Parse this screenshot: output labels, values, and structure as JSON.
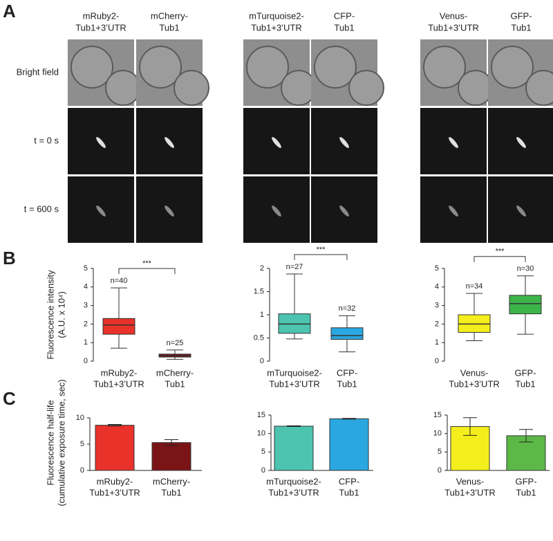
{
  "panels": [
    "A",
    "B",
    "C"
  ],
  "panel_a": {
    "columns": [
      [
        "mRuby2-",
        "Tub1+3’UTR"
      ],
      [
        "mCherry-",
        "Tub1"
      ],
      [
        "mTurquoise2-",
        "Tub1+3’UTR"
      ],
      [
        "CFP-",
        "Tub1"
      ],
      [
        "Venus-",
        "Tub1+3’UTR"
      ],
      [
        "GFP-",
        "Tub1"
      ]
    ],
    "rows": [
      "Bright field",
      "t = 0 s",
      "t = 600 s"
    ]
  },
  "ylabel_b": [
    "Fluorescence intensity",
    "(A.U. x 10⁴)"
  ],
  "ylabel_c": [
    "Fluorescence half-life",
    "(cumulative exposure time, sec)"
  ],
  "chart_data": [
    {
      "type": "box",
      "categories": [
        [
          "mRuby2-",
          "Tub1+3’UTR"
        ],
        [
          "mCherry-",
          "Tub1"
        ]
      ],
      "ylim": [
        0,
        5
      ],
      "yticks": [
        0,
        1,
        2,
        3,
        4,
        5
      ],
      "significance": "***",
      "boxes": [
        {
          "min": 0.7,
          "q1": 1.45,
          "median": 1.95,
          "q3": 2.3,
          "max": 3.95,
          "n": "n=40",
          "color": "#e8322a"
        },
        {
          "min": 0.1,
          "q1": 0.22,
          "median": 0.3,
          "q3": 0.38,
          "max": 0.6,
          "n": "n=25",
          "color": "#7b1416"
        }
      ]
    },
    {
      "type": "box",
      "categories": [
        [
          "mTurquoise2-",
          "Tub1+3’UTR"
        ],
        [
          "CFP-",
          "Tub1"
        ]
      ],
      "ylim": [
        0,
        2
      ],
      "yticks": [
        0,
        0.5,
        1,
        1.5,
        2
      ],
      "significance": "***",
      "boxes": [
        {
          "min": 0.48,
          "q1": 0.6,
          "median": 0.8,
          "q3": 1.02,
          "max": 1.88,
          "n": "n=27",
          "color": "#4cc4b0"
        },
        {
          "min": 0.2,
          "q1": 0.47,
          "median": 0.55,
          "q3": 0.72,
          "max": 0.98,
          "n": "n=32",
          "color": "#2aa7e0"
        }
      ]
    },
    {
      "type": "box",
      "categories": [
        [
          "Venus-",
          "Tub1+3’UTR"
        ],
        [
          "GFP-",
          "Tub1"
        ]
      ],
      "ylim": [
        0,
        5
      ],
      "yticks": [
        0,
        1,
        2,
        3,
        4,
        5
      ],
      "significance": "***",
      "boxes": [
        {
          "min": 1.1,
          "q1": 1.55,
          "median": 2.0,
          "q3": 2.5,
          "max": 3.65,
          "n": "n=34",
          "color": "#f4ee1c"
        },
        {
          "min": 1.45,
          "q1": 2.55,
          "median": 3.1,
          "q3": 3.55,
          "max": 4.6,
          "n": "n=30",
          "color": "#3cb44a"
        }
      ]
    },
    {
      "type": "bar",
      "categories": [
        [
          "mRuby2-",
          "Tub1+3’UTR"
        ],
        [
          "mCherry-",
          "Tub1"
        ]
      ],
      "ylim": [
        0,
        10
      ],
      "yticks": [
        0,
        5,
        10
      ],
      "values": [
        8.6,
        5.3
      ],
      "errors": [
        0.15,
        0.55
      ],
      "colors": [
        "#e8322a",
        "#7b1416"
      ]
    },
    {
      "type": "bar",
      "categories": [
        [
          "mTurquoise2-",
          "Tub1+3’UTR"
        ],
        [
          "CFP-",
          "Tub1"
        ]
      ],
      "ylim": [
        0,
        15
      ],
      "yticks": [
        0,
        5,
        10,
        15
      ],
      "values": [
        12.0,
        14.0
      ],
      "errors": [
        0.1,
        0.1
      ],
      "colors": [
        "#4cc4b0",
        "#2aa7e0"
      ]
    },
    {
      "type": "bar",
      "categories": [
        [
          "Venus-",
          "Tub1+3’UTR"
        ],
        [
          "GFP-",
          "Tub1"
        ]
      ],
      "ylim": [
        0,
        15
      ],
      "yticks": [
        0,
        5,
        10,
        15
      ],
      "values": [
        11.9,
        9.4
      ],
      "errors": [
        2.4,
        1.7
      ],
      "colors": [
        "#f4ee1c",
        "#5cb947"
      ]
    }
  ]
}
